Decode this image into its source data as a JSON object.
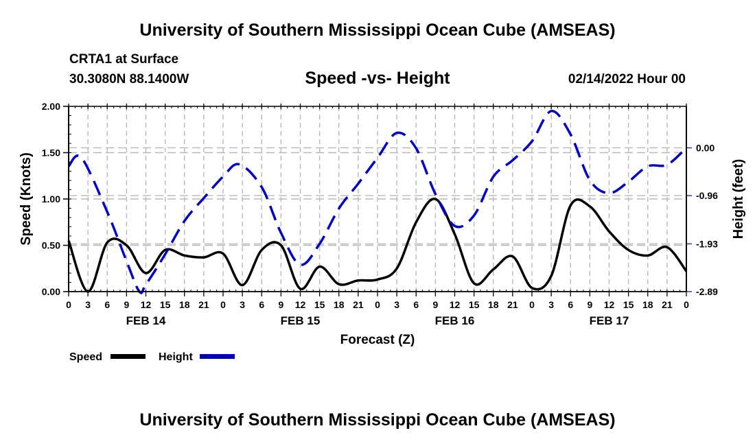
{
  "header": {
    "title": "University of Southern Mississippi Ocean Cube (AMSEAS)",
    "station": "CRTA1 at Surface",
    "coords": "30.3080N  88.1400W",
    "subtitle": "Speed -vs- Height",
    "datetime": "02/14/2022 Hour 00"
  },
  "footer": {
    "title": "University of Southern Mississippi Ocean Cube (AMSEAS)"
  },
  "chart_data": {
    "type": "line",
    "title": "Speed -vs- Height",
    "xlabel": "Forecast (Z)",
    "ylabel": "Speed (Knots)",
    "y2label": "Height (feet)",
    "xlim_hours": [
      0,
      96
    ],
    "ylim": [
      0,
      2
    ],
    "y2lim": [
      -2.89,
      0.834
    ],
    "x_tick_labels": [
      "0",
      "3",
      "6",
      "9",
      "12",
      "15",
      "18",
      "21",
      "0",
      "3",
      "6",
      "9",
      "12",
      "15",
      "18",
      "21",
      "0",
      "3",
      "6",
      "9",
      "12",
      "15",
      "18",
      "21",
      "0",
      "3",
      "6",
      "9",
      "12",
      "15",
      "18",
      "21",
      "0"
    ],
    "date_labels": [
      {
        "label": "FEB 14",
        "hour": 12
      },
      {
        "label": "FEB 15",
        "hour": 36
      },
      {
        "label": "FEB 16",
        "hour": 60
      },
      {
        "label": "FEB 17",
        "hour": 84
      }
    ],
    "y_ticks": [
      "0.00",
      "0.50",
      "1.00",
      "1.50",
      "2.00"
    ],
    "y_tick_values": [
      0,
      0.5,
      1.0,
      1.5,
      2.0
    ],
    "y2_ticks": [
      "0.00",
      "-0.96",
      "-1.93",
      "-2.89"
    ],
    "y2_tick_values": [
      0.0,
      -0.96,
      -1.93,
      -2.89
    ],
    "grid": true,
    "legend": {
      "position": "bottom-left",
      "items": [
        {
          "name": "Speed",
          "color": "#000000",
          "style": "solid"
        },
        {
          "name": "Height",
          "color": "#0000cc",
          "style": "dashed"
        }
      ]
    },
    "series": [
      {
        "name": "Speed",
        "axis": "left",
        "color": "#000000",
        "x": [
          0,
          3,
          6,
          9,
          12,
          15,
          18,
          21,
          24,
          27,
          30,
          33,
          36,
          39,
          42,
          45,
          48,
          51,
          54,
          57,
          60,
          63,
          66,
          69,
          72,
          75,
          78,
          81,
          84,
          87,
          90,
          93,
          96
        ],
        "values": [
          0.55,
          0.0,
          0.53,
          0.5,
          0.2,
          0.45,
          0.39,
          0.37,
          0.41,
          0.07,
          0.45,
          0.5,
          0.03,
          0.27,
          0.08,
          0.12,
          0.13,
          0.25,
          0.75,
          1.0,
          0.62,
          0.09,
          0.24,
          0.38,
          0.04,
          0.17,
          0.93,
          0.92,
          0.65,
          0.45,
          0.39,
          0.48,
          0.22
        ]
      },
      {
        "name": "Height",
        "axis": "right",
        "color": "#0000cc",
        "x": [
          0,
          2,
          6,
          9,
          11,
          12,
          15,
          18,
          21,
          24,
          26.5,
          30,
          33,
          36,
          39,
          42,
          45,
          48,
          51,
          54,
          57,
          60,
          63,
          66,
          69,
          72,
          75,
          78,
          81,
          84,
          87,
          90,
          93,
          96
        ],
        "values": [
          -0.37,
          -0.2,
          -1.29,
          -2.28,
          -2.89,
          -2.75,
          -2.14,
          -1.47,
          -1.01,
          -0.58,
          -0.33,
          -0.79,
          -1.71,
          -2.35,
          -1.93,
          -1.22,
          -0.72,
          -0.2,
          0.3,
          -0.01,
          -0.93,
          -1.57,
          -1.36,
          -0.58,
          -0.25,
          0.13,
          0.74,
          0.27,
          -0.65,
          -0.91,
          -0.68,
          -0.37,
          -0.34,
          0.0
        ]
      }
    ]
  }
}
